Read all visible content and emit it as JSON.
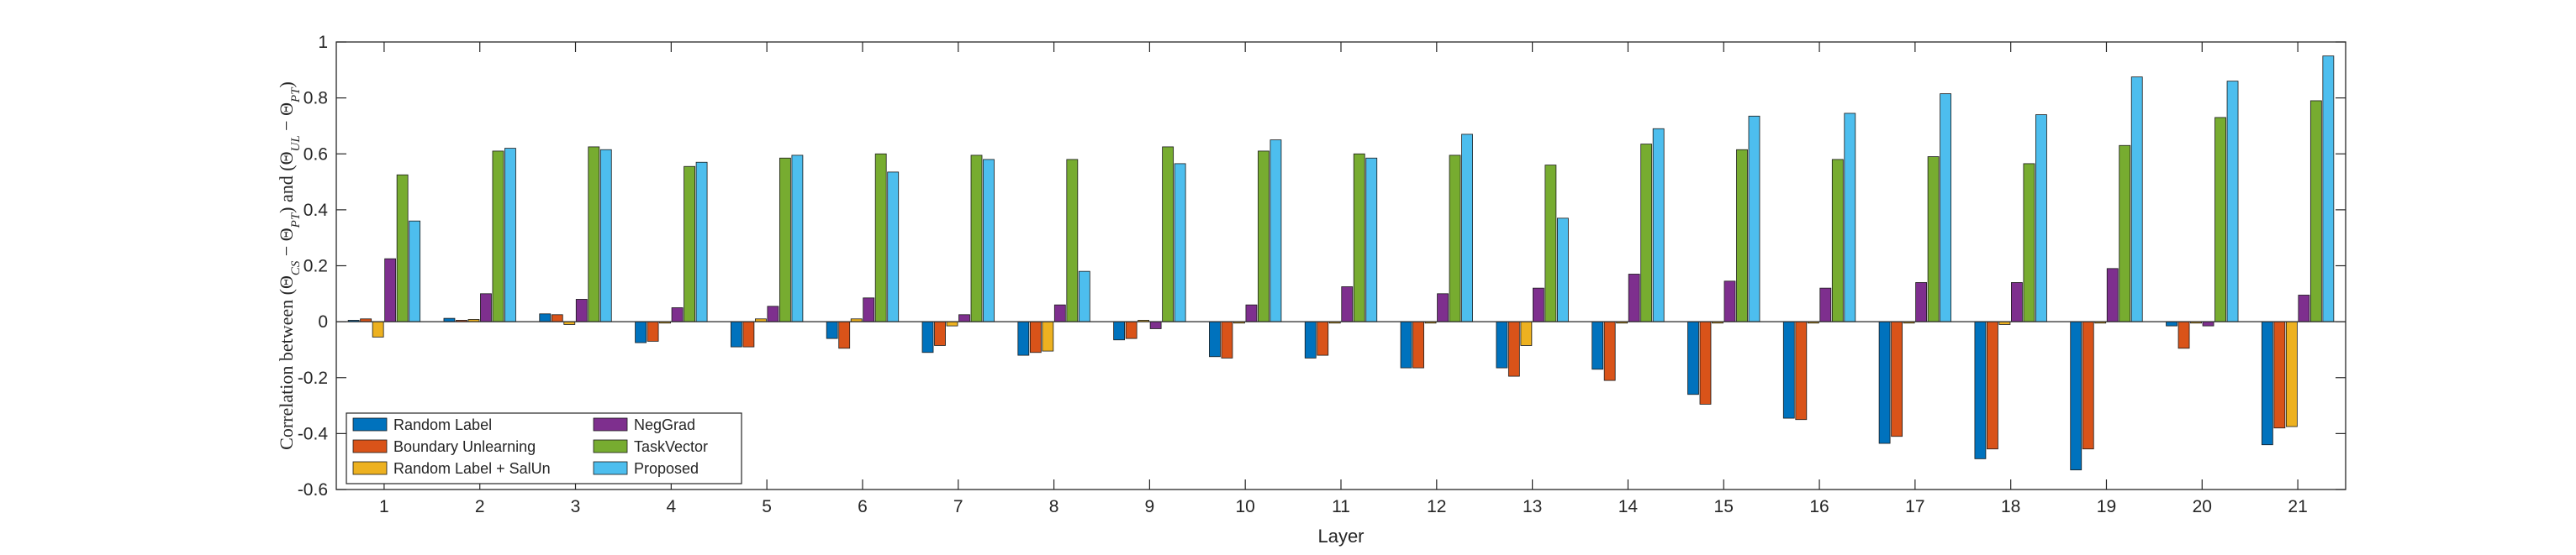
{
  "chart_data": {
    "type": "bar",
    "xlabel": "Layer",
    "ylabel": {
      "text": "Correlation between (Θ",
      "sub1": "CS",
      "mid1": " − Θ",
      "sub2": "PT",
      "mid2": ") and (Θ",
      "sub3": "UL",
      "mid3": " − Θ",
      "sub4": "PT",
      "end": ")"
    },
    "ylim": [
      -0.6,
      1
    ],
    "yticks": [
      -0.6,
      -0.4,
      -0.2,
      0,
      0.2,
      0.4,
      0.6,
      0.8,
      1
    ],
    "categories": [
      "1",
      "2",
      "3",
      "4",
      "5",
      "6",
      "7",
      "8",
      "9",
      "10",
      "11",
      "12",
      "13",
      "14",
      "15",
      "16",
      "17",
      "18",
      "19",
      "20",
      "21"
    ],
    "grid": false,
    "legend_position": "bottom-left",
    "series": [
      {
        "name": "Random Label",
        "color": "#0072BD",
        "values": [
          0.005,
          0.012,
          0.028,
          -0.075,
          -0.09,
          -0.06,
          -0.11,
          -0.12,
          -0.065,
          -0.125,
          -0.13,
          -0.165,
          -0.165,
          -0.17,
          -0.26,
          -0.345,
          -0.435,
          -0.49,
          -0.53,
          -0.015,
          -0.44
        ]
      },
      {
        "name": "Boundary Unlearning",
        "color": "#D95319",
        "values": [
          0.01,
          0.005,
          0.025,
          -0.07,
          -0.09,
          -0.095,
          -0.085,
          -0.11,
          -0.06,
          -0.13,
          -0.12,
          -0.165,
          -0.195,
          -0.21,
          -0.295,
          -0.35,
          -0.41,
          -0.455,
          -0.455,
          -0.095,
          -0.38
        ]
      },
      {
        "name": "Random Label + SalUn",
        "color": "#EDB120",
        "values": [
          -0.055,
          0.008,
          -0.01,
          -0.005,
          0.01,
          0.01,
          -0.015,
          -0.105,
          0.005,
          -0.005,
          -0.005,
          -0.005,
          -0.085,
          -0.005,
          -0.005,
          -0.005,
          -0.005,
          -0.01,
          -0.005,
          -0.005,
          -0.375
        ]
      },
      {
        "name": "NegGrad",
        "color": "#7E2F8E",
        "values": [
          0.225,
          0.1,
          0.08,
          0.05,
          0.055,
          0.085,
          0.025,
          0.06,
          -0.025,
          0.06,
          0.125,
          0.1,
          0.12,
          0.17,
          0.145,
          0.12,
          0.14,
          0.14,
          0.19,
          -0.015,
          0.095
        ]
      },
      {
        "name": "TaskVector",
        "color": "#77AC30",
        "values": [
          0.525,
          0.61,
          0.625,
          0.555,
          0.585,
          0.6,
          0.595,
          0.58,
          0.625,
          0.61,
          0.6,
          0.595,
          0.56,
          0.635,
          0.615,
          0.58,
          0.59,
          0.565,
          0.63,
          0.73,
          0.79
        ]
      },
      {
        "name": "Proposed",
        "color": "#4DBEEE",
        "values": [
          0.36,
          0.62,
          0.615,
          0.57,
          0.595,
          0.535,
          0.58,
          0.18,
          0.565,
          0.65,
          0.585,
          0.67,
          0.37,
          0.69,
          0.735,
          0.745,
          0.815,
          0.74,
          0.875,
          0.86,
          0.95
        ]
      }
    ]
  }
}
